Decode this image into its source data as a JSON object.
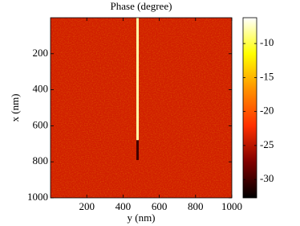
{
  "chart_data": {
    "type": "heatmap",
    "title": "Phase  (degree)",
    "xlabel": "y  (nm)",
    "ylabel": "x  (nm)",
    "xlim": [
      0,
      1000
    ],
    "xticks": [
      200,
      400,
      600,
      800,
      1000
    ],
    "ylim": [
      0,
      1000
    ],
    "yticks": [
      200,
      400,
      600,
      800,
      1000
    ],
    "y_inverted": true,
    "colormap": [
      "#000000",
      "#800000",
      "#ff3000",
      "#ff9000",
      "#ffff00",
      "#ffffff"
    ],
    "clim": [
      -32.7,
      -6.2
    ],
    "cticks": [
      -10,
      -15,
      -20,
      -25,
      -30
    ],
    "background": -24,
    "streaks": [
      {
        "y": 480,
        "x0": 0,
        "x1": 680,
        "value": -8
      },
      {
        "y": 480,
        "x0": 680,
        "x1": 790,
        "value": -30
      }
    ]
  }
}
